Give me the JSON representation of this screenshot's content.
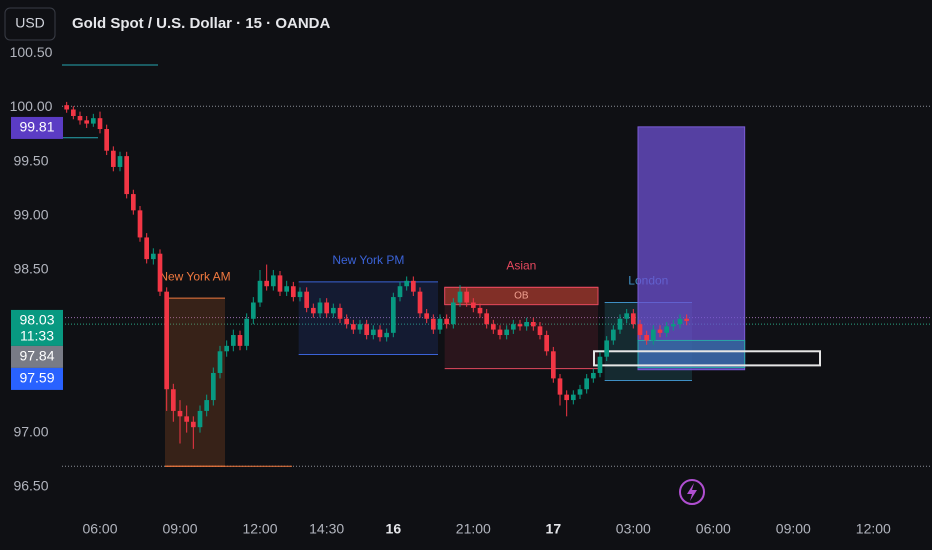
{
  "header": {
    "currency_button": "USD",
    "title": "Gold Spot / U.S. Dollar · 15 · OANDA"
  },
  "chart_data": {
    "type": "candlestick",
    "up_color": "#089981",
    "down_color": "#f23645",
    "xlim": [
      -5.7,
      124.8
    ],
    "ylim": [
      96.24,
      100.99
    ],
    "xticks": [
      {
        "value": 0,
        "label": "06:00"
      },
      {
        "value": 12,
        "label": "09:00"
      },
      {
        "value": 24,
        "label": "12:00"
      },
      {
        "value": 34,
        "label": "14:30"
      },
      {
        "value": 44,
        "label": "16"
      },
      {
        "value": 56,
        "label": "21:00"
      },
      {
        "value": 68,
        "label": "17"
      },
      {
        "value": 80,
        "label": "03:00"
      },
      {
        "value": 92,
        "label": "06:00"
      },
      {
        "value": 104,
        "label": "09:00"
      },
      {
        "value": 116,
        "label": "12:00"
      }
    ],
    "yticks": [
      {
        "value": 100.5,
        "label": "100.50"
      },
      {
        "value": 100,
        "label": "100.00"
      },
      {
        "value": 99.5,
        "label": "99.50"
      },
      {
        "value": 99,
        "label": "99.00"
      },
      {
        "value": 98.5,
        "label": "98.50"
      },
      {
        "value": 97,
        "label": "97.00"
      },
      {
        "value": 96.5,
        "label": "96.50"
      }
    ],
    "x": [
      -5,
      -4,
      -3,
      -2,
      -1,
      0,
      1,
      2,
      3,
      4,
      5,
      6,
      7,
      8,
      9,
      10,
      11,
      12,
      13,
      14,
      15,
      16,
      17,
      18,
      19,
      20,
      21,
      22,
      23,
      24,
      25,
      26,
      27,
      28,
      29,
      30,
      31,
      32,
      33,
      34,
      35,
      36,
      37,
      38,
      39,
      40,
      41,
      42,
      43,
      44,
      45,
      46,
      47,
      48,
      49,
      50,
      51,
      52,
      53,
      54,
      55,
      56,
      57,
      58,
      59,
      60,
      61,
      62,
      63,
      64,
      65,
      66,
      67,
      68,
      69,
      70,
      71,
      72,
      73,
      74,
      75,
      76,
      77,
      78,
      79,
      80,
      81,
      82,
      83,
      84,
      85,
      86,
      87,
      88
    ],
    "candles": [
      [
        100.02,
        100.05,
        99.95,
        99.98
      ],
      [
        99.98,
        100.01,
        99.89,
        99.92
      ],
      [
        99.92,
        99.96,
        99.84,
        99.88
      ],
      [
        99.88,
        99.92,
        99.81,
        99.85
      ],
      [
        99.85,
        99.94,
        99.82,
        99.9
      ],
      [
        99.9,
        99.96,
        99.76,
        99.8
      ],
      [
        99.8,
        99.84,
        99.56,
        99.6
      ],
      [
        99.6,
        99.64,
        99.41,
        99.45
      ],
      [
        99.45,
        99.59,
        99.41,
        99.55
      ],
      [
        99.55,
        99.59,
        99.16,
        99.2
      ],
      [
        99.2,
        99.24,
        99.01,
        99.05
      ],
      [
        99.05,
        99.09,
        98.76,
        98.8
      ],
      [
        98.8,
        98.84,
        98.56,
        98.6
      ],
      [
        98.6,
        98.7,
        98.55,
        98.65
      ],
      [
        98.65,
        98.69,
        98.26,
        98.3
      ],
      [
        98.3,
        98.34,
        97.2,
        97.4
      ],
      [
        97.4,
        97.45,
        97.1,
        97.2
      ],
      [
        97.2,
        97.3,
        96.9,
        97.15
      ],
      [
        97.15,
        97.25,
        97.0,
        97.1
      ],
      [
        97.1,
        97.15,
        96.85,
        97.05
      ],
      [
        97.05,
        97.25,
        97.0,
        97.2
      ],
      [
        97.2,
        97.35,
        97.15,
        97.3
      ],
      [
        97.3,
        97.6,
        97.25,
        97.55
      ],
      [
        97.55,
        97.8,
        97.5,
        97.75
      ],
      [
        97.75,
        97.85,
        97.7,
        97.8
      ],
      [
        97.8,
        97.95,
        97.75,
        97.9
      ],
      [
        97.9,
        97.94,
        97.76,
        97.8
      ],
      [
        97.8,
        98.1,
        97.76,
        98.05
      ],
      [
        98.05,
        98.25,
        98.0,
        98.2
      ],
      [
        98.2,
        98.5,
        98.16,
        98.4
      ],
      [
        98.4,
        98.55,
        98.31,
        98.35
      ],
      [
        98.35,
        98.5,
        98.31,
        98.45
      ],
      [
        98.45,
        98.49,
        98.26,
        98.3
      ],
      [
        98.3,
        98.4,
        98.26,
        98.35
      ],
      [
        98.35,
        98.39,
        98.21,
        98.25
      ],
      [
        98.25,
        98.34,
        98.21,
        98.3
      ],
      [
        98.3,
        98.34,
        98.11,
        98.15
      ],
      [
        98.15,
        98.19,
        98.06,
        98.1
      ],
      [
        98.1,
        98.24,
        98.06,
        98.2
      ],
      [
        98.2,
        98.24,
        98.06,
        98.1
      ],
      [
        98.1,
        98.19,
        98.06,
        98.15
      ],
      [
        98.15,
        98.19,
        98.01,
        98.05
      ],
      [
        98.05,
        98.09,
        97.96,
        98.0
      ],
      [
        98.0,
        98.04,
        97.91,
        97.95
      ],
      [
        97.95,
        98.04,
        97.91,
        98.0
      ],
      [
        98.0,
        98.04,
        97.86,
        97.9
      ],
      [
        97.9,
        97.99,
        97.86,
        97.95
      ],
      [
        97.95,
        97.99,
        97.84,
        97.88
      ],
      [
        97.88,
        97.96,
        97.84,
        97.92
      ],
      [
        97.92,
        98.29,
        97.88,
        98.25
      ],
      [
        98.25,
        98.39,
        98.21,
        98.35
      ],
      [
        98.35,
        98.44,
        98.31,
        98.4
      ],
      [
        98.4,
        98.44,
        98.26,
        98.3
      ],
      [
        98.3,
        98.34,
        98.06,
        98.1
      ],
      [
        98.1,
        98.14,
        98.01,
        98.05
      ],
      [
        98.05,
        98.09,
        97.91,
        97.95
      ],
      [
        97.95,
        98.09,
        97.91,
        98.05
      ],
      [
        98.05,
        98.09,
        97.96,
        98.0
      ],
      [
        98.0,
        98.24,
        97.96,
        98.2
      ],
      [
        98.2,
        98.36,
        98.16,
        98.3
      ],
      [
        98.3,
        98.34,
        98.16,
        98.2
      ],
      [
        98.2,
        98.24,
        98.11,
        98.15
      ],
      [
        98.15,
        98.19,
        98.06,
        98.1
      ],
      [
        98.1,
        98.14,
        97.96,
        98.0
      ],
      [
        98.0,
        98.04,
        97.91,
        97.95
      ],
      [
        97.95,
        97.99,
        97.86,
        97.9
      ],
      [
        97.9,
        97.99,
        97.86,
        97.95
      ],
      [
        97.95,
        98.04,
        97.91,
        98.0
      ],
      [
        98.0,
        98.04,
        97.94,
        97.98
      ],
      [
        97.98,
        98.06,
        97.94,
        98.02
      ],
      [
        98.02,
        98.06,
        97.94,
        97.98
      ],
      [
        97.98,
        98.02,
        97.86,
        97.9
      ],
      [
        97.9,
        97.94,
        97.71,
        97.75
      ],
      [
        97.75,
        97.79,
        97.46,
        97.5
      ],
      [
        97.5,
        97.54,
        97.25,
        97.35
      ],
      [
        97.35,
        97.39,
        97.15,
        97.3
      ],
      [
        97.3,
        97.39,
        97.26,
        97.35
      ],
      [
        97.35,
        97.44,
        97.31,
        97.4
      ],
      [
        97.4,
        97.54,
        97.36,
        97.5
      ],
      [
        97.5,
        97.59,
        97.46,
        97.55
      ],
      [
        97.55,
        97.74,
        97.51,
        97.7
      ],
      [
        97.7,
        97.89,
        97.66,
        97.85
      ],
      [
        97.85,
        97.99,
        97.81,
        97.95
      ],
      [
        97.95,
        98.09,
        97.91,
        98.05
      ],
      [
        98.05,
        98.14,
        98.01,
        98.1
      ],
      [
        98.1,
        98.14,
        97.96,
        98.0
      ],
      [
        98.0,
        98.04,
        97.86,
        97.9
      ],
      [
        97.9,
        97.94,
        97.81,
        97.85
      ],
      [
        97.85,
        97.99,
        97.81,
        97.95
      ],
      [
        97.95,
        97.99,
        97.88,
        97.92
      ],
      [
        97.92,
        98.02,
        97.88,
        97.98
      ],
      [
        97.98,
        98.04,
        97.94,
        98.0
      ],
      [
        98.0,
        98.09,
        97.96,
        98.05
      ],
      [
        98.05,
        98.09,
        97.99,
        98.03
      ]
    ],
    "sessions": [
      {
        "name": "New York AM",
        "color": "#f0793f",
        "fill": "rgba(160,82,35,0.28)",
        "x": [
          9.75,
          18.75
        ],
        "y": [
          96.69,
          98.24
        ]
      },
      {
        "name": "New York PM",
        "color": "#3b63d8",
        "fill": "rgba(40,70,160,0.22)",
        "x": [
          29.8,
          50.7
        ],
        "y": [
          97.72,
          98.39
        ]
      },
      {
        "name": "Asian",
        "color": "#e5485e",
        "fill": "rgba(140,40,60,0.22)",
        "x": [
          51.7,
          74.7
        ],
        "y": [
          97.59,
          98.34
        ]
      },
      {
        "name": "London",
        "color": "#3f8fc4",
        "fill": "rgba(40,120,130,0.25)",
        "x": [
          75.7,
          88.8
        ],
        "y": [
          97.48,
          98.2
        ]
      }
    ],
    "zones": [
      {
        "name": "OB",
        "color": "#e5485e",
        "fill": "rgba(200,70,50,0.55)",
        "x": [
          51.7,
          74.7
        ],
        "y": [
          98.18,
          98.34
        ]
      },
      {
        "color": "#7b5cd6",
        "fill": "rgba(110,80,210,0.75)",
        "x": [
          80.7,
          96.7
        ],
        "y": [
          97.58,
          99.82
        ]
      },
      {
        "color": "#2aa7a7",
        "fill": "rgba(30,120,150,0.55)",
        "x": [
          80.7,
          96.7
        ],
        "y": [
          97.6,
          97.85
        ]
      },
      {
        "color": "#e6e6e6",
        "fill": "rgba(0,0,0,0)",
        "x": [
          74.1,
          108
        ],
        "y": [
          97.62,
          97.75
        ]
      }
    ],
    "segments": [
      {
        "color": "#26a6b0",
        "x": [
          -5.7,
          8.7
        ],
        "y": 100.39
      },
      {
        "color": "#26a6b0",
        "x": [
          -5.7,
          -0.3
        ],
        "y": 99.72
      },
      {
        "color": "#f0793f",
        "x": [
          9.75,
          28.8
        ],
        "y": 96.69
      }
    ],
    "levels": [
      {
        "value": 100.01,
        "color": "#8a8d96"
      },
      {
        "value": 96.69,
        "color": "#8a8d96"
      },
      {
        "value": 98.06,
        "color": "#9c6fb0"
      },
      {
        "value": 98.0,
        "color": "#2aa785"
      }
    ],
    "badges": [
      {
        "value": 99.81,
        "color": "#5b3cc4"
      },
      {
        "value": 98.03,
        "color": "#089981",
        "countdown": "11:33"
      },
      {
        "value": 97.84,
        "color": "#787b86"
      },
      {
        "value": 97.59,
        "color": "#2962ff"
      }
    ]
  }
}
